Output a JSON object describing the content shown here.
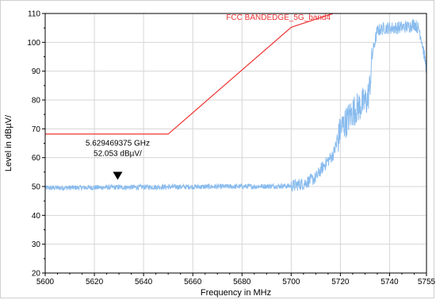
{
  "chart_data": {
    "type": "line",
    "xlabel": "Frequency in MHz",
    "ylabel": "Level in dBµV/",
    "xlim": [
      5600,
      5755
    ],
    "ylim": [
      20,
      110
    ],
    "x_ticks": [
      "5600",
      "5620",
      "5640",
      "5660",
      "5680",
      "5700",
      "5720",
      "5740",
      "5755"
    ],
    "y_ticks": [
      "20",
      "30",
      "40",
      "50",
      "60",
      "70",
      "80",
      "90",
      "100",
      "110"
    ],
    "grid": true,
    "series": [
      {
        "name": "FCC BANDEDGE_5G_band4",
        "color": "#ee3333",
        "x": [
          5600,
          5650,
          5700,
          5717
        ],
        "y": [
          68.2,
          68.2,
          105.2,
          110
        ]
      },
      {
        "name": "",
        "color": "#88bbee",
        "x": [
          5600,
          5640,
          5680,
          5700,
          5705,
          5710,
          5713,
          5715,
          5717,
          5719,
          5720,
          5722,
          5725,
          5728,
          5731,
          5732,
          5733,
          5735,
          5738,
          5742,
          5748,
          5750,
          5752,
          5753,
          5755
        ],
        "y": [
          49.5,
          49.8,
          50.0,
          50.2,
          51.0,
          53.0,
          57.0,
          59.0,
          61.0,
          66.0,
          70.0,
          72.0,
          76.0,
          78.0,
          80.0,
          85.0,
          96.0,
          104.0,
          105.0,
          105.0,
          105.5,
          106.5,
          104.5,
          101.0,
          91.0
        ]
      }
    ],
    "annotations": {
      "marker": {
        "x": 5629.469375,
        "y": 52.053,
        "freq_text": "5.629469375 GHz",
        "level_text": "52.053 dBµV/"
      }
    }
  }
}
